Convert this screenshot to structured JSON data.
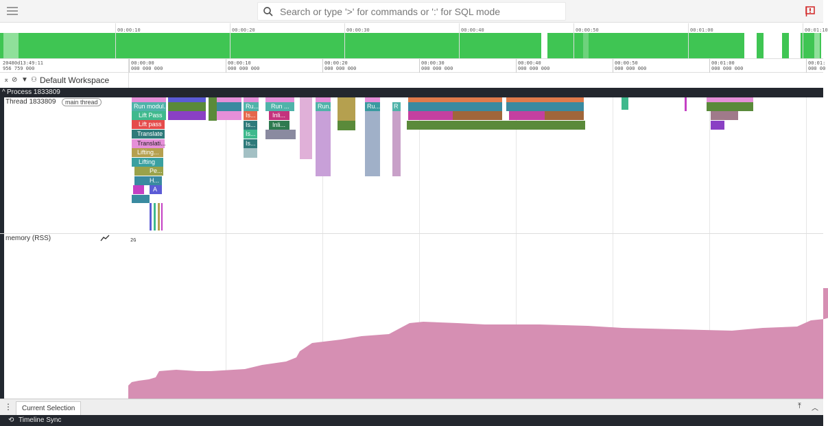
{
  "topbar": {
    "search_placeholder": "Search or type '>' for commands or ':' for SQL mode"
  },
  "overview": {
    "labels": [
      "00:00:10",
      "00:00:20",
      "00:00:30",
      "00:00:40",
      "00:00:50",
      "00:01:00",
      "00:01:10"
    ]
  },
  "timeaxis": {
    "origin_line1": "20480d13:49:11",
    "origin_line2": "956 759 000",
    "ticks": [
      {
        "l1": "00:00:00",
        "l2": "000 000 000"
      },
      {
        "l1": "00:00:10",
        "l2": "000 000 000"
      },
      {
        "l1": "00:00:20",
        "l2": "000 000 000"
      },
      {
        "l1": "00:00:30",
        "l2": "000 000 000"
      },
      {
        "l1": "00:00:40",
        "l2": "000 000 000"
      },
      {
        "l1": "00:00:50",
        "l2": "000 000 000"
      },
      {
        "l1": "00:01:00",
        "l2": "000 000 000"
      },
      {
        "l1": "00:01:",
        "l2": "000 00"
      }
    ]
  },
  "workspace": {
    "title": "Default Workspace"
  },
  "process": {
    "label": "Process 1833809"
  },
  "thread": {
    "label": "Thread 1833809",
    "chip": "main thread",
    "slices": [
      {
        "text": "Run modul...",
        "color": "#4fb3a9"
      },
      {
        "text": "Lift Pass",
        "color": "#3fb98d"
      },
      {
        "text": "Lift pass",
        "color": "#e54b4b"
      },
      {
        "text": "Translate",
        "color": "#2e7a7a"
      },
      {
        "text": "Translati...",
        "color": "#e58fd8"
      },
      {
        "text": "Lifting...",
        "color": "#b5a04f"
      },
      {
        "text": "Lifting",
        "color": "#3aa0a0"
      },
      {
        "text": "Pe...",
        "color": "#9aa24a"
      },
      {
        "text": "H...",
        "color": "#3a8aa0"
      },
      {
        "text": "A",
        "color": "#5b5bd6"
      },
      {
        "text": "Ru...",
        "color": "#4fb3a9"
      },
      {
        "text": "Is...",
        "color": "#e5674b"
      },
      {
        "text": "Is...",
        "color": "#2e7a7a"
      },
      {
        "text": "Is...",
        "color": "#3fb98d"
      },
      {
        "text": "Is...",
        "color": "#2e7a7a"
      },
      {
        "text": "Run ...",
        "color": "#4fb3a9"
      },
      {
        "text": "Inli...",
        "color": "#c4337d"
      },
      {
        "text": "Inli...",
        "color": "#2e7a50"
      },
      {
        "text": "Run...",
        "color": "#4fb3a9"
      },
      {
        "text": "Ru...",
        "color": "#3a9aa0"
      },
      {
        "text": "R",
        "color": "#4fb3a9"
      }
    ]
  },
  "memory": {
    "label": "memory (RSS)",
    "scale": "2G",
    "color": "#d68fb3"
  },
  "bottom": {
    "tab": "Current Selection",
    "status": "Timeline Sync"
  },
  "colors": {
    "green": "#3fc553",
    "dark": "#23272e"
  }
}
